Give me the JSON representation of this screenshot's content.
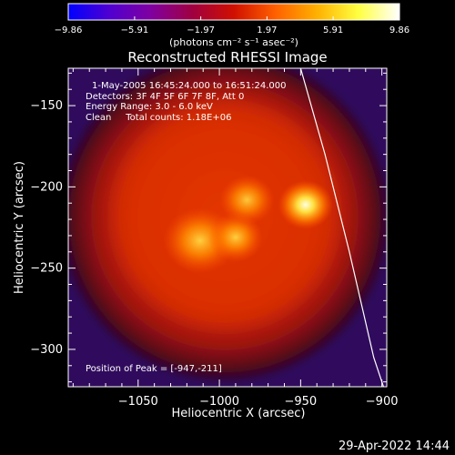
{
  "chart_data": {
    "type": "heatmap",
    "title": "Reconstructed RHESSI Image",
    "xlabel": "Heliocentric X (arcsec)",
    "ylabel": "Heliocentric Y (arcsec)",
    "xlim": [
      -1093,
      -897
    ],
    "ylim": [
      -323,
      -127
    ],
    "xticks": [
      -1050,
      -1000,
      -950,
      -900
    ],
    "xtick_labels": [
      "−1050",
      "−1000",
      "−950",
      "−900"
    ],
    "yticks": [
      -150,
      -200,
      -250,
      -300
    ],
    "ytick_labels": [
      "−150",
      "−200",
      "−250",
      "−300"
    ],
    "colorbar": {
      "range": [
        -9.86,
        9.86
      ],
      "tick_labels": [
        "−9.86",
        "−5.91",
        "−1.97",
        "1.97",
        "5.91",
        "9.86"
      ],
      "tick_values": [
        -9.86,
        -5.91,
        -1.97,
        1.97,
        5.91,
        9.86
      ],
      "units_label": "(photons cm⁻² s⁻¹ asec⁻²)",
      "colormap": [
        "#0000ff",
        "#5000d0",
        "#8000a0",
        "#a00040",
        "#d01000",
        "#ff6000",
        "#ffb000",
        "#ffff40",
        "#ffffff"
      ]
    },
    "info_lines": [
      "1-May-2005 16:45:24.000 to 16:51:24.000",
      "Detectors: 3F 4F 5F 6F 7F 8F, Att 0",
      "Energy Range: 3.0 - 6.0 keV",
      "Clean     Total counts: 1.18E+06"
    ],
    "peak_label": "Position of Peak = [-947,-211]",
    "peak": {
      "x": -947,
      "y": -211
    },
    "source_peaks": [
      {
        "x": -947,
        "y": -211,
        "value": 9.86
      },
      {
        "x": -1012,
        "y": -233,
        "value": 8.2
      },
      {
        "x": -990,
        "y": -231,
        "value": 7.0
      },
      {
        "x": -983,
        "y": -208,
        "value": 6.0
      }
    ],
    "limb_curve": [
      [
        -950,
        -127
      ],
      [
        -935,
        -180
      ],
      [
        -920,
        -240
      ],
      [
        -905,
        -305
      ],
      [
        -899,
        -323
      ]
    ],
    "background_color": "#3c0f6e"
  },
  "footer": {
    "timestamp": "29-Apr-2022 14:44"
  }
}
